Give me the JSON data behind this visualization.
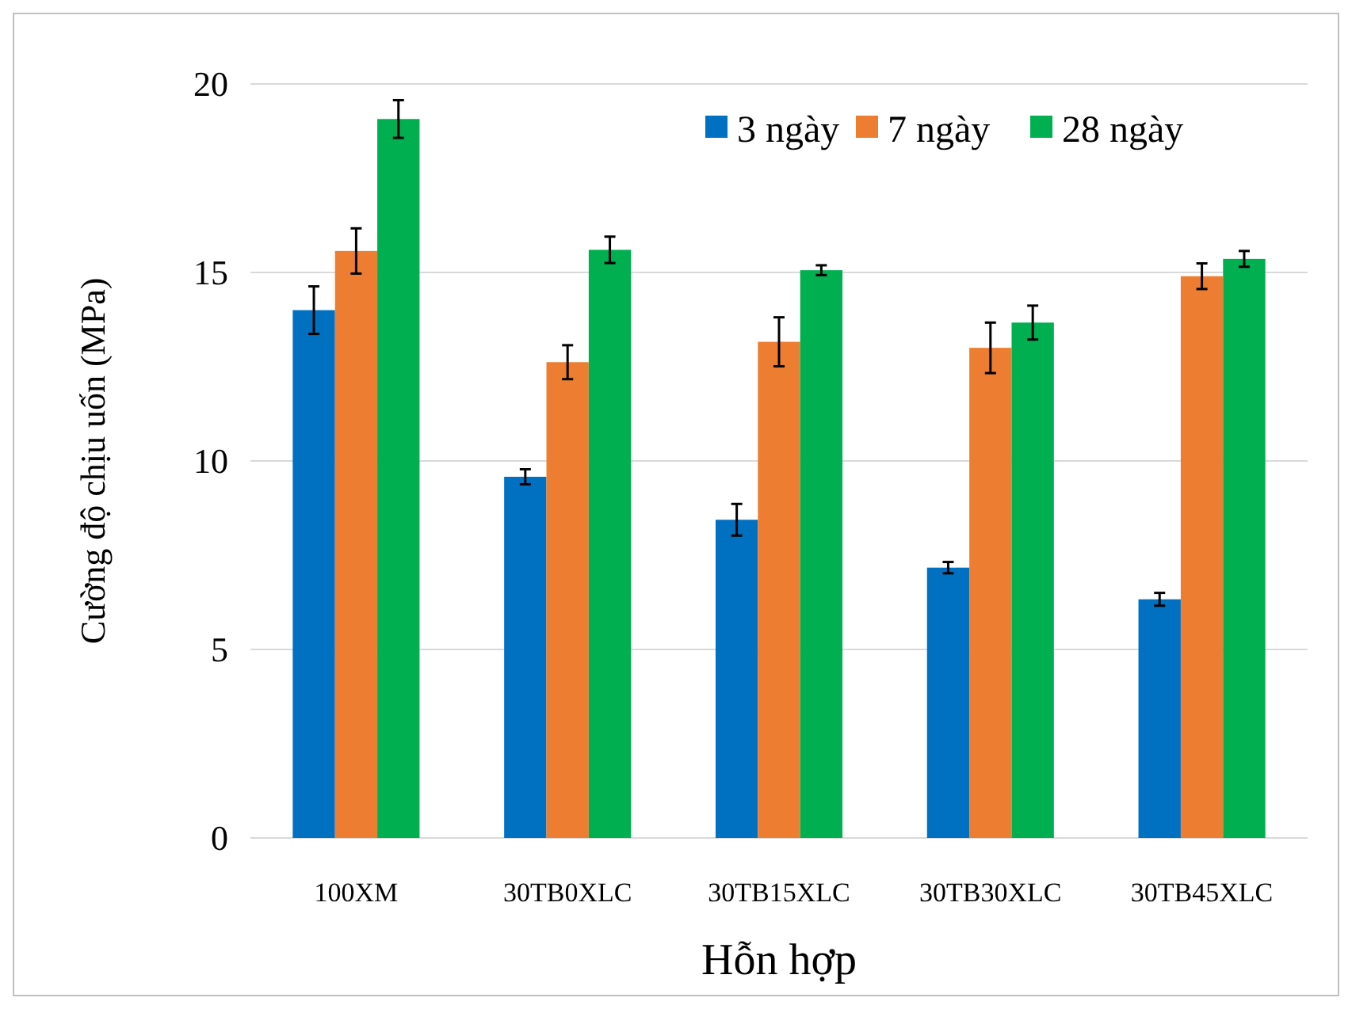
{
  "chart_data": {
    "type": "bar",
    "xlabel": "Hỗn hợp",
    "ylabel": "Cường độ chịu uốn (MPa)",
    "categories": [
      "100XM",
      "30TB0XLC",
      "30TB15XLC",
      "30TB30XLC",
      "30TB45XLC"
    ],
    "series": [
      {
        "name": "3 ngày",
        "color": "#0070c0",
        "values": [
          14.0,
          9.58,
          8.44,
          7.17,
          6.33
        ],
        "errors": [
          0.63,
          0.2,
          0.42,
          0.15,
          0.17
        ]
      },
      {
        "name": "7 ngày",
        "color": "#ed7d31",
        "values": [
          15.57,
          12.62,
          13.16,
          13.0,
          14.9
        ],
        "errors": [
          0.6,
          0.45,
          0.65,
          0.67,
          0.34
        ]
      },
      {
        "name": "28 ngày",
        "color": "#00b050",
        "values": [
          19.07,
          15.6,
          15.06,
          13.67,
          15.36
        ],
        "errors": [
          0.5,
          0.35,
          0.13,
          0.45,
          0.21
        ]
      }
    ],
    "ylim": [
      0,
      20
    ],
    "yticks": [
      0,
      5,
      10,
      15,
      20
    ],
    "grid": "y",
    "legend": "top right"
  }
}
